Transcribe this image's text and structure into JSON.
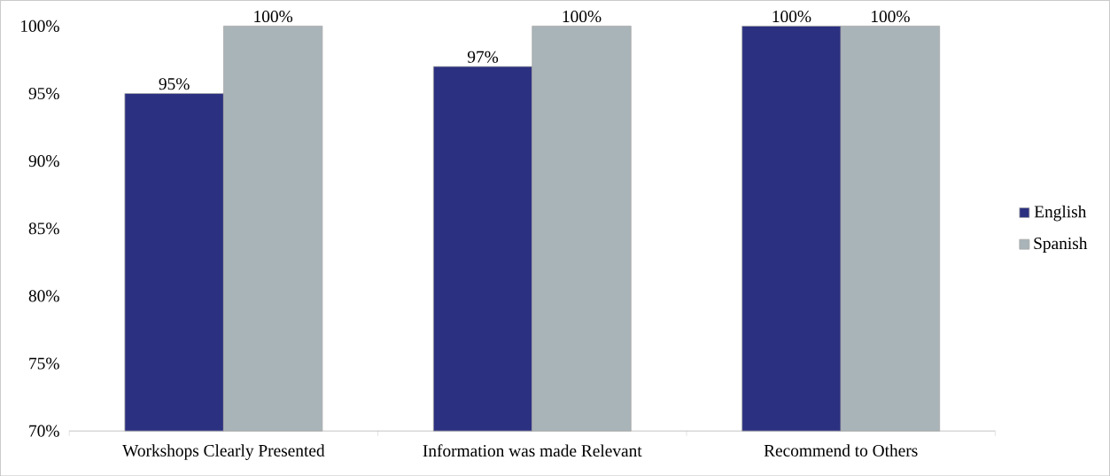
{
  "chart_data": {
    "type": "bar",
    "categories": [
      "Workshops Clearly Presented",
      "Information was made Relevant",
      "Recommend to Others"
    ],
    "series": [
      {
        "name": "English",
        "color": "#2b3080",
        "values": [
          95,
          97,
          100
        ],
        "value_labels": [
          "95%",
          "97%",
          "100%"
        ]
      },
      {
        "name": "Spanish",
        "color": "#a9b4b9",
        "values": [
          100,
          100,
          100
        ],
        "value_labels": [
          "100%",
          "100%",
          "100%"
        ]
      }
    ],
    "ylim": [
      70,
      100
    ],
    "yticks": [
      {
        "value": 70,
        "label": "70%"
      },
      {
        "value": 75,
        "label": "75%"
      },
      {
        "value": 80,
        "label": "80%"
      },
      {
        "value": 85,
        "label": "85%"
      },
      {
        "value": 90,
        "label": "90%"
      },
      {
        "value": 95,
        "label": "95%"
      },
      {
        "value": 100,
        "label": "100%"
      }
    ],
    "grid": false,
    "legend": "right"
  }
}
